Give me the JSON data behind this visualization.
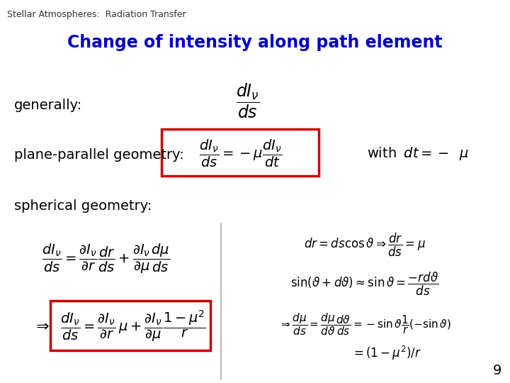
{
  "title": "Change of intensity along path element",
  "subtitle": "Stellar Atmospheres:  Radiation Transfer",
  "background_color": "#ffffff",
  "title_color": "#0000cc",
  "text_color": "#000000",
  "box_color": "#cc0000",
  "page_number": "9",
  "label_generally": "generally:",
  "label_plane": "plane-parallel geometry:",
  "label_spherical": "spherical geometry:",
  "eq_generally": "$\\dfrac{dI_\\nu}{ds}$",
  "eq_plane": "$\\dfrac{dI_\\nu}{ds} = -\\mu\\dfrac{dI_\\nu}{dt}$",
  "eq_plane_with": "$\\mathrm{with}\\;\\; dt = -\\;\\;\\mu$",
  "eq_sph1": "$\\dfrac{dI_\\nu}{ds} = \\dfrac{\\partial I_\\nu}{\\partial r}\\dfrac{dr}{ds} + \\dfrac{\\partial I_\\nu}{\\partial \\mu}\\dfrac{d\\mu}{ds}$",
  "eq_sph2": "$\\dfrac{dI_\\nu}{ds} = \\dfrac{\\partial I_\\nu}{\\partial r}\\,\\mu + \\dfrac{\\partial I_\\nu}{\\partial \\mu}\\dfrac{1-\\mu^2}{r}$",
  "eq_right1": "$dr = ds\\cos\\vartheta \\Rightarrow \\dfrac{dr}{ds} = \\mu$",
  "eq_right2": "$\\sin(\\vartheta + d\\vartheta) \\approx \\sin\\vartheta = \\dfrac{-rd\\vartheta}{ds}$",
  "eq_right3": "$\\Rightarrow \\dfrac{d\\mu}{ds} = \\dfrac{d\\mu}{d\\vartheta}\\dfrac{d\\vartheta}{ds} = -\\sin\\vartheta\\dfrac{1}{r}(-\\sin\\vartheta)$",
  "eq_right4": "$= (1-\\mu^2)/r$",
  "arrow": "$\\Rightarrow$"
}
